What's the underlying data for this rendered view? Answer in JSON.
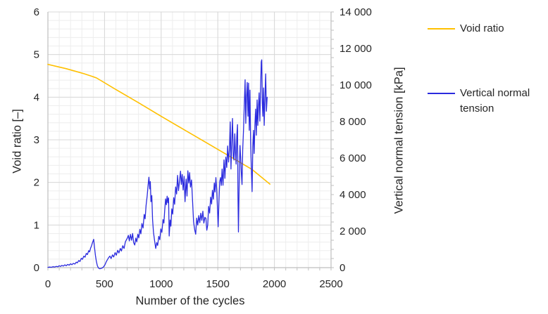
{
  "chart_data": {
    "type": "line",
    "title": "",
    "xlabel": "Number of the cycles",
    "grid": true,
    "legend_position": "right",
    "x_axis": {
      "lim": [
        0,
        2500
      ],
      "major_step": 500,
      "minor_step": 100,
      "tick_labels": [
        "0",
        "500",
        "1000",
        "1500",
        "2000",
        "2500"
      ]
    },
    "left_axis": {
      "label": "Void ratio [–]",
      "lim": [
        0,
        6
      ],
      "major_step": 1,
      "minor_step": 0.2,
      "tick_labels": [
        "0",
        "1",
        "2",
        "3",
        "4",
        "5",
        "6"
      ]
    },
    "right_axis": {
      "label": "Vertical normal tension [kPa]",
      "lim": [
        0,
        14000
      ],
      "major_step": 2000,
      "minor_tick_step": 500,
      "tick_labels": [
        "0",
        "2 000",
        "4 000",
        "6 000",
        "8 000",
        "10 000",
        "12 000",
        "14 000"
      ]
    },
    "series": [
      {
        "name": "Void ratio",
        "axis": "left",
        "color": "#FFC000",
        "points": [
          [
            0,
            4.77
          ],
          [
            80,
            4.72
          ],
          [
            160,
            4.67
          ],
          [
            240,
            4.61
          ],
          [
            320,
            4.55
          ],
          [
            400,
            4.48
          ],
          [
            430,
            4.45
          ],
          [
            600,
            4.18
          ],
          [
            800,
            3.87
          ],
          [
            1000,
            3.55
          ],
          [
            1200,
            3.24
          ],
          [
            1400,
            2.93
          ],
          [
            1600,
            2.62
          ],
          [
            1800,
            2.31
          ],
          [
            1960,
            1.96
          ]
        ]
      },
      {
        "name": "Vertical normal tension",
        "axis": "right",
        "color": "#2B2BDE",
        "points": [
          [
            0,
            15
          ],
          [
            15,
            30
          ],
          [
            30,
            20
          ],
          [
            45,
            50
          ],
          [
            60,
            35
          ],
          [
            75,
            70
          ],
          [
            88,
            50
          ],
          [
            100,
            105
          ],
          [
            112,
            65
          ],
          [
            124,
            125
          ],
          [
            136,
            85
          ],
          [
            150,
            155
          ],
          [
            162,
            105
          ],
          [
            175,
            175
          ],
          [
            188,
            135
          ],
          [
            200,
            210
          ],
          [
            212,
            160
          ],
          [
            225,
            235
          ],
          [
            238,
            195
          ],
          [
            250,
            300
          ],
          [
            260,
            260
          ],
          [
            272,
            390
          ],
          [
            283,
            340
          ],
          [
            295,
            510
          ],
          [
            305,
            455
          ],
          [
            317,
            630
          ],
          [
            328,
            570
          ],
          [
            339,
            780
          ],
          [
            349,
            715
          ],
          [
            360,
            930
          ],
          [
            368,
            860
          ],
          [
            377,
            1070
          ],
          [
            385,
            1190
          ],
          [
            394,
            1380
          ],
          [
            404,
            1550
          ],
          [
            411,
            1140
          ],
          [
            419,
            690
          ],
          [
            427,
            370
          ],
          [
            436,
            120
          ],
          [
            446,
            -20
          ],
          [
            457,
            -60
          ],
          [
            468,
            -45
          ],
          [
            480,
            -15
          ],
          [
            490,
            30
          ],
          [
            503,
            150
          ],
          [
            515,
            320
          ],
          [
            527,
            450
          ],
          [
            538,
            560
          ],
          [
            548,
            630
          ],
          [
            558,
            495
          ],
          [
            570,
            700
          ],
          [
            581,
            585
          ],
          [
            593,
            820
          ],
          [
            604,
            680
          ],
          [
            616,
            950
          ],
          [
            627,
            805
          ],
          [
            639,
            1050
          ],
          [
            649,
            910
          ],
          [
            661,
            1200
          ],
          [
            672,
            1050
          ],
          [
            684,
            1410
          ],
          [
            695,
            1550
          ],
          [
            703,
            1630
          ],
          [
            711,
            1770
          ],
          [
            719,
            1460
          ],
          [
            729,
            1820
          ],
          [
            738,
            1500
          ],
          [
            748,
            1870
          ],
          [
            757,
            1370
          ],
          [
            767,
            1240
          ],
          [
            776,
            1620
          ],
          [
            785,
            1410
          ],
          [
            794,
            1830
          ],
          [
            803,
            1630
          ],
          [
            812,
            2100
          ],
          [
            821,
            1850
          ],
          [
            830,
            2420
          ],
          [
            840,
            2170
          ],
          [
            850,
            2910
          ],
          [
            858,
            2670
          ],
          [
            867,
            3410
          ],
          [
            876,
            3910
          ],
          [
            884,
            4450
          ],
          [
            892,
            4950
          ],
          [
            899,
            4310
          ],
          [
            904,
            4710
          ],
          [
            910,
            3610
          ],
          [
            917,
            3950
          ],
          [
            924,
            2630
          ],
          [
            932,
            1940
          ],
          [
            941,
            1520
          ],
          [
            952,
            1050
          ],
          [
            961,
            1370
          ],
          [
            969,
            1220
          ],
          [
            979,
            1710
          ],
          [
            988,
            1530
          ],
          [
            997,
            2120
          ],
          [
            1006,
            1930
          ],
          [
            1016,
            2630
          ],
          [
            1024,
            2440
          ],
          [
            1031,
            3120
          ],
          [
            1039,
            3760
          ],
          [
            1046,
            3440
          ],
          [
            1053,
            3910
          ],
          [
            1059,
            3550
          ],
          [
            1065,
            3820
          ],
          [
            1071,
            1730
          ],
          [
            1079,
            2610
          ],
          [
            1086,
            2270
          ],
          [
            1094,
            3220
          ],
          [
            1102,
            2930
          ],
          [
            1111,
            3830
          ],
          [
            1119,
            3470
          ],
          [
            1128,
            4420
          ],
          [
            1136,
            4030
          ],
          [
            1145,
            5050
          ],
          [
            1153,
            4220
          ],
          [
            1162,
            4720
          ],
          [
            1171,
            5280
          ],
          [
            1178,
            4550
          ],
          [
            1186,
            5100
          ],
          [
            1194,
            4250
          ],
          [
            1203,
            5000
          ],
          [
            1211,
            3610
          ],
          [
            1220,
            4850
          ],
          [
            1228,
            3920
          ],
          [
            1236,
            5300
          ],
          [
            1244,
            4630
          ],
          [
            1251,
            5200
          ],
          [
            1259,
            4410
          ],
          [
            1268,
            4800
          ],
          [
            1277,
            3710
          ],
          [
            1286,
            2510
          ],
          [
            1296,
            2070
          ],
          [
            1305,
            1830
          ],
          [
            1314,
            2710
          ],
          [
            1323,
            2330
          ],
          [
            1332,
            2850
          ],
          [
            1341,
            2460
          ],
          [
            1350,
            2980
          ],
          [
            1359,
            2590
          ],
          [
            1368,
            3090
          ],
          [
            1377,
            2440
          ],
          [
            1386,
            2750
          ],
          [
            1395,
            2700
          ],
          [
            1403,
            2050
          ],
          [
            1411,
            2330
          ],
          [
            1419,
            3350
          ],
          [
            1428,
            2990
          ],
          [
            1437,
            3860
          ],
          [
            1445,
            3480
          ],
          [
            1453,
            4240
          ],
          [
            1461,
            3750
          ],
          [
            1469,
            4630
          ],
          [
            1476,
            4140
          ],
          [
            1483,
            4930
          ],
          [
            1490,
            4300
          ],
          [
            1497,
            3300
          ],
          [
            1503,
            2240
          ],
          [
            1510,
            3600
          ],
          [
            1517,
            4700
          ],
          [
            1524,
            4930
          ],
          [
            1531,
            4500
          ],
          [
            1538,
            5400
          ],
          [
            1546,
            4510
          ],
          [
            1555,
            5900
          ],
          [
            1563,
            4890
          ],
          [
            1571,
            6050
          ],
          [
            1579,
            5490
          ],
          [
            1587,
            6660
          ],
          [
            1595,
            5780
          ],
          [
            1603,
            6490
          ],
          [
            1610,
            7980
          ],
          [
            1616,
            5400
          ],
          [
            1623,
            6890
          ],
          [
            1630,
            8170
          ],
          [
            1637,
            6090
          ],
          [
            1643,
            5890
          ],
          [
            1650,
            7330
          ],
          [
            1656,
            6290
          ],
          [
            1662,
            5670
          ],
          [
            1668,
            7200
          ],
          [
            1674,
            7830
          ],
          [
            1678,
            4090
          ],
          [
            1682,
            1950
          ],
          [
            1686,
            3490
          ],
          [
            1691,
            5490
          ],
          [
            1696,
            6690
          ],
          [
            1702,
            5990
          ],
          [
            1708,
            5190
          ],
          [
            1714,
            4550
          ],
          [
            1720,
            6490
          ],
          [
            1727,
            7520
          ],
          [
            1734,
            8890
          ],
          [
            1741,
            10290
          ],
          [
            1747,
            7900
          ],
          [
            1753,
            9290
          ],
          [
            1760,
            10140
          ],
          [
            1766,
            8290
          ],
          [
            1772,
            10100
          ],
          [
            1778,
            7520
          ],
          [
            1784,
            9720
          ],
          [
            1790,
            6860
          ],
          [
            1797,
            5190
          ],
          [
            1803,
            4160
          ],
          [
            1809,
            6630
          ],
          [
            1815,
            7520
          ],
          [
            1821,
            6250
          ],
          [
            1828,
            7800
          ],
          [
            1834,
            8680
          ],
          [
            1840,
            7250
          ],
          [
            1847,
            9180
          ],
          [
            1853,
            7790
          ],
          [
            1859,
            8800
          ],
          [
            1865,
            9570
          ],
          [
            1871,
            8020
          ],
          [
            1878,
            9900
          ],
          [
            1884,
            11260
          ],
          [
            1888,
            11380
          ],
          [
            1893,
            9000
          ],
          [
            1898,
            8290
          ],
          [
            1904,
            9840
          ],
          [
            1910,
            7790
          ],
          [
            1917,
            9500
          ],
          [
            1923,
            10610
          ],
          [
            1929,
            8560
          ],
          [
            1936,
            9330
          ]
        ]
      }
    ]
  },
  "colors": {
    "text": "#262626",
    "minor_grid": "#EDEDED",
    "major_grid": "#D8D8D8",
    "axis_line": "#BFBFBF"
  }
}
